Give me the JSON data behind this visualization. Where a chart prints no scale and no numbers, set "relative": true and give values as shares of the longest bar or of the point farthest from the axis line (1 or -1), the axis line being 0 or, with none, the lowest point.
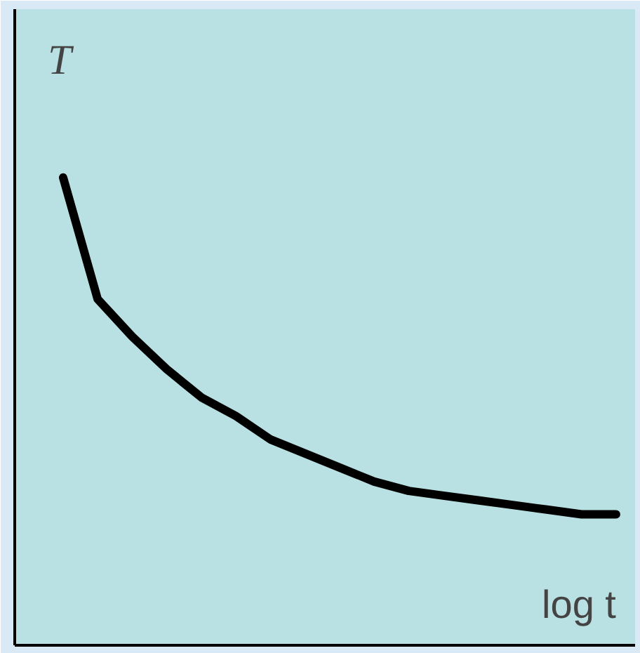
{
  "chart_data": {
    "type": "line",
    "relative": true,
    "xlabel": "log t",
    "ylabel": "T",
    "categories": [
      null,
      null,
      null,
      null,
      null,
      null,
      null,
      null,
      null,
      null,
      null,
      null,
      null,
      null,
      null,
      null,
      null
    ],
    "series": [
      {
        "color": "#000000",
        "values": [
          1.0,
          0.74,
          0.66,
          0.59,
          0.53,
          0.49,
          0.44,
          0.41,
          0.38,
          0.35,
          0.33,
          0.32,
          0.31,
          0.3,
          0.29,
          0.28,
          0.28
        ]
      }
    ],
    "marker": "none",
    "line_style": "solid"
  }
}
